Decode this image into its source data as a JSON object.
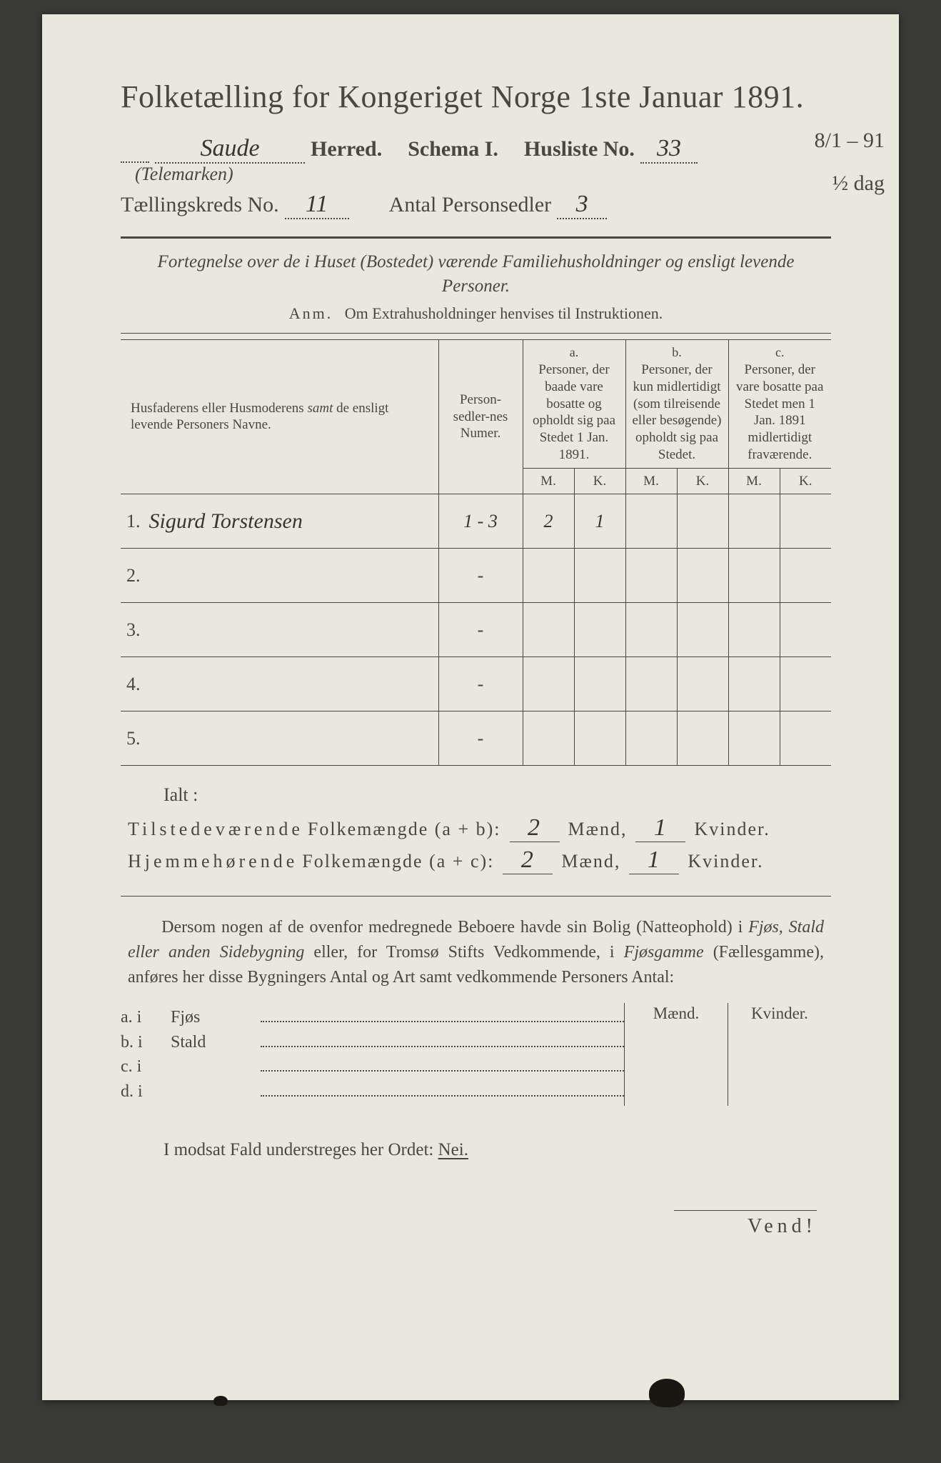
{
  "title": "Folketælling for Kongeriget Norge 1ste Januar 1891.",
  "header": {
    "herred_value": "Saude",
    "herred_label": "Herred.",
    "schema_label": "Schema I.",
    "husliste_label": "Husliste No.",
    "husliste_value": "33",
    "sub_paren": "(Telemarken)",
    "kreds_label": "Tællingskreds No.",
    "kreds_value": "11",
    "antal_label": "Antal Personsedler",
    "antal_value": "3",
    "margin_note_1": "8/1 – 91",
    "margin_note_2": "½ dag"
  },
  "subtitle": "Fortegnelse over de i Huset (Bostedet) værende Familiehusholdninger og ensligt levende Personer.",
  "anm_lead": "Anm.",
  "anm_text": "Om Extrahusholdninger henvises til Instruktionen.",
  "table": {
    "col_name": "Husfaderens eller Husmoderens samt de ensligt levende Personers Navne.",
    "col_numer": "Person-sedler-nes Numer.",
    "col_a_letter": "a.",
    "col_a": "Personer, der baade vare bosatte og opholdt sig paa Stedet 1 Jan. 1891.",
    "col_b_letter": "b.",
    "col_b": "Personer, der kun midlertidigt (som tilreisende eller besøgende) opholdt sig paa Stedet.",
    "col_c_letter": "c.",
    "col_c": "Personer, der vare bosatte paa Stedet men 1 Jan. 1891 midlertidigt fraværende.",
    "mk_m": "M.",
    "mk_k": "K.",
    "rows": [
      {
        "num": "1.",
        "name": "Sigurd Torstensen",
        "numer": "1 - 3",
        "a_m": "2",
        "a_k": "1",
        "b_m": "",
        "b_k": "",
        "c_m": "",
        "c_k": ""
      },
      {
        "num": "2.",
        "name": "",
        "numer": "-",
        "a_m": "",
        "a_k": "",
        "b_m": "",
        "b_k": "",
        "c_m": "",
        "c_k": ""
      },
      {
        "num": "3.",
        "name": "",
        "numer": "-",
        "a_m": "",
        "a_k": "",
        "b_m": "",
        "b_k": "",
        "c_m": "",
        "c_k": ""
      },
      {
        "num": "4.",
        "name": "",
        "numer": "-",
        "a_m": "",
        "a_k": "",
        "b_m": "",
        "b_k": "",
        "c_m": "",
        "c_k": ""
      },
      {
        "num": "5.",
        "name": "",
        "numer": "-",
        "a_m": "",
        "a_k": "",
        "b_m": "",
        "b_k": "",
        "c_m": "",
        "c_k": ""
      }
    ]
  },
  "ialt": "Ialt :",
  "totals": {
    "line1_label": "Tilstedeværende Folkemængde (a + b):",
    "line1_m": "2",
    "line1_k": "1",
    "line2_label": "Hjemmehørende Folkemængde (a + c):",
    "line2_m": "2",
    "line2_k": "1",
    "maend": "Mænd,",
    "kvinder": "Kvinder."
  },
  "para": "Dersom nogen af de ovenfor medregnede Beboere havde sin Bolig (Natteophold) i Fjøs, Stald eller anden Sidebygning eller, for Tromsø Stifts Vedkommende, i Fjøsgamme (Fællesgamme), anføres her disse Bygningers Antal og Art samt vedkommende Personers Antal:",
  "mk": {
    "maend": "Mænd.",
    "kvinder": "Kvinder.",
    "rows": [
      {
        "l": "a.  i",
        "t": "Fjøs"
      },
      {
        "l": "b.  i",
        "t": "Stald"
      },
      {
        "l": "c.  i",
        "t": ""
      },
      {
        "l": "d.  i",
        "t": ""
      }
    ]
  },
  "nei_line_pre": "I modsat Fald understreges her Ordet:",
  "nei": "Nei.",
  "vend": "Vend!"
}
